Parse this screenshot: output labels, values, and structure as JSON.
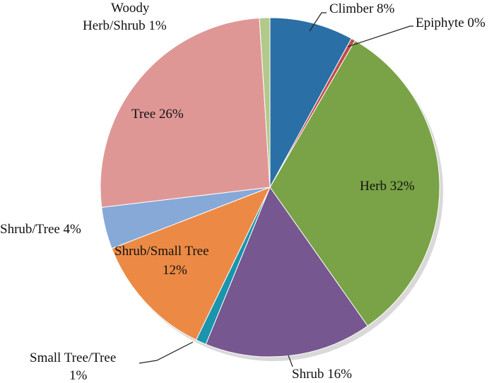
{
  "chart_data": {
    "type": "pie",
    "start_angle_deg": 0,
    "direction": "clockwise",
    "slices": [
      {
        "name": "Climber",
        "value": 8,
        "label": "Climber 8%",
        "color": "#2a6fa5"
      },
      {
        "name": "Epiphyte",
        "value": 0.4,
        "label": "Epiphyte 0%",
        "color": "#c24b4b"
      },
      {
        "name": "Herb",
        "value": 32,
        "label": "Herb 32%",
        "color": "#79a346"
      },
      {
        "name": "Shrub",
        "value": 16,
        "label": "Shrub 16%",
        "color": "#76578f"
      },
      {
        "name": "Small Tree/Tree",
        "value": 1,
        "label": "Small Tree/Tree 1%",
        "label_lines": [
          "Small Tree/Tree",
          "1%"
        ],
        "color": "#1b94ad"
      },
      {
        "name": "Shrub/Small Tree",
        "value": 12,
        "label": "Shrub/Small Tree 12%",
        "label_lines": [
          "Shrub/Small Tree",
          "12%"
        ],
        "color": "#ec8a45"
      },
      {
        "name": "Shrub/Tree",
        "value": 4,
        "label": "Shrub/Tree 4%",
        "color": "#86a9d8"
      },
      {
        "name": "Tree",
        "value": 26,
        "label": "Tree 26%",
        "color": "#df9796"
      },
      {
        "name": "Woody Herb/Shrub",
        "value": 1,
        "label": "Woody Herb/Shrub 1%",
        "label_lines": [
          "Woody",
          "Herb/Shrub  1%"
        ],
        "color": "#b2c98c"
      }
    ]
  }
}
